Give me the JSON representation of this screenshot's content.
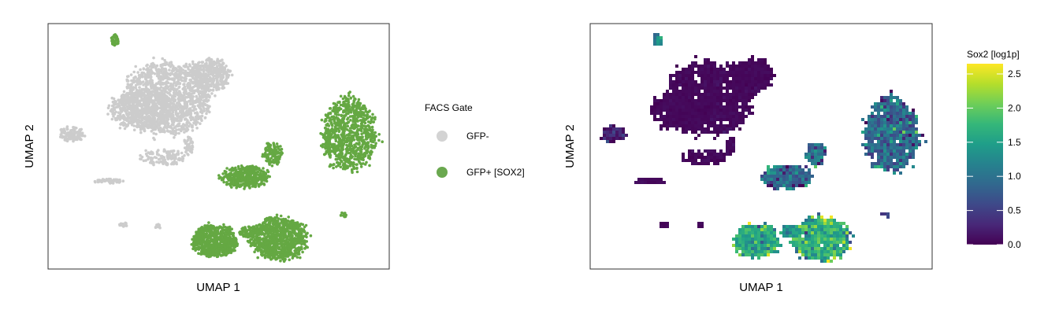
{
  "chart_data": [
    {
      "type": "scatter",
      "xlabel": "UMAP 1",
      "ylabel": "UMAP 2",
      "legend": {
        "title": "FACS Gate",
        "placement": "right",
        "entries": [
          {
            "label": "GFP-",
            "color": "#d3d3d3"
          },
          {
            "label": "GFP+ [SOX2]",
            "color": "#6aa84f"
          }
        ]
      },
      "point_colors": {
        "GFP-": "#cccccc",
        "GFP+ [SOX2]": "#65a843"
      }
    },
    {
      "type": "heatmap",
      "xlabel": "UMAP 1",
      "ylabel": "UMAP 2",
      "colorbar": {
        "title": "Sox2 [log1p]",
        "ticks": [
          "0.0",
          "0.5",
          "1.0",
          "1.5",
          "2.0",
          "2.5"
        ],
        "range": [
          0,
          2.65
        ],
        "colormap": [
          "#440154",
          "#482878",
          "#3e4989",
          "#31688e",
          "#26828e",
          "#1f9e89",
          "#35b779",
          "#6ece58",
          "#b5de2b",
          "#fde725"
        ]
      }
    }
  ]
}
